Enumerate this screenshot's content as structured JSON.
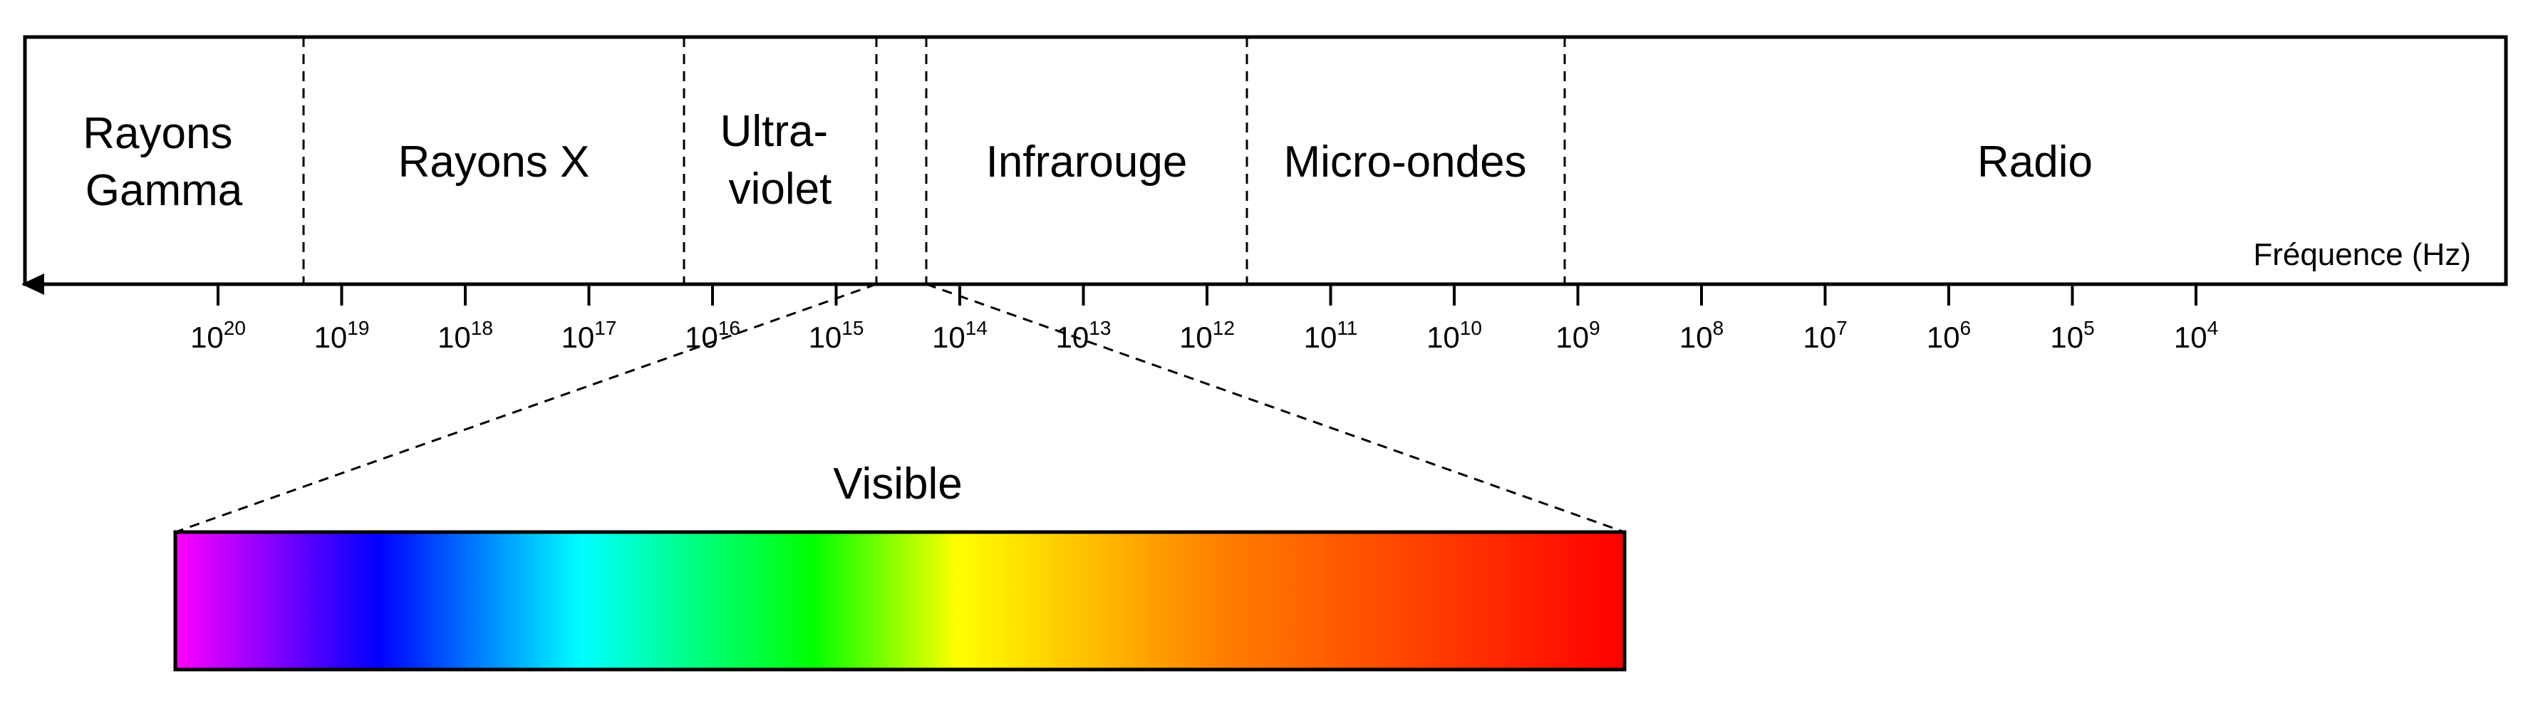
{
  "diagram": {
    "bands": [
      {
        "lines": [
          "Rayons",
          "Gamma"
        ]
      },
      {
        "lines": [
          "Rayons X"
        ]
      },
      {
        "lines": [
          "Ultra-",
          "violet"
        ]
      },
      {
        "lines": []
      },
      {
        "lines": [
          "Infrarouge"
        ]
      },
      {
        "lines": [
          "Micro-ondes"
        ]
      },
      {
        "lines": [
          "Radio"
        ]
      }
    ],
    "axis_title": "Fréquence (Hz)",
    "ticks": [
      {
        "base": "10",
        "exp": "20"
      },
      {
        "base": "10",
        "exp": "19"
      },
      {
        "base": "10",
        "exp": "18"
      },
      {
        "base": "10",
        "exp": "17"
      },
      {
        "base": "10",
        "exp": "16"
      },
      {
        "base": "10",
        "exp": "15"
      },
      {
        "base": "10",
        "exp": "14"
      },
      {
        "base": "10",
        "exp": "13"
      },
      {
        "base": "10",
        "exp": "12"
      },
      {
        "base": "10",
        "exp": "11"
      },
      {
        "base": "10",
        "exp": "10"
      },
      {
        "base": "10",
        "exp": "9"
      },
      {
        "base": "10",
        "exp": "8"
      },
      {
        "base": "10",
        "exp": "7"
      },
      {
        "base": "10",
        "exp": "6"
      },
      {
        "base": "10",
        "exp": "5"
      },
      {
        "base": "10",
        "exp": "4"
      }
    ],
    "visible": {
      "title": "Visible",
      "gradient_colors": [
        "#ff00ff",
        "#0000ff",
        "#00ffff",
        "#00ff00",
        "#ffff00",
        "#ff8000",
        "#ff0000"
      ]
    }
  }
}
